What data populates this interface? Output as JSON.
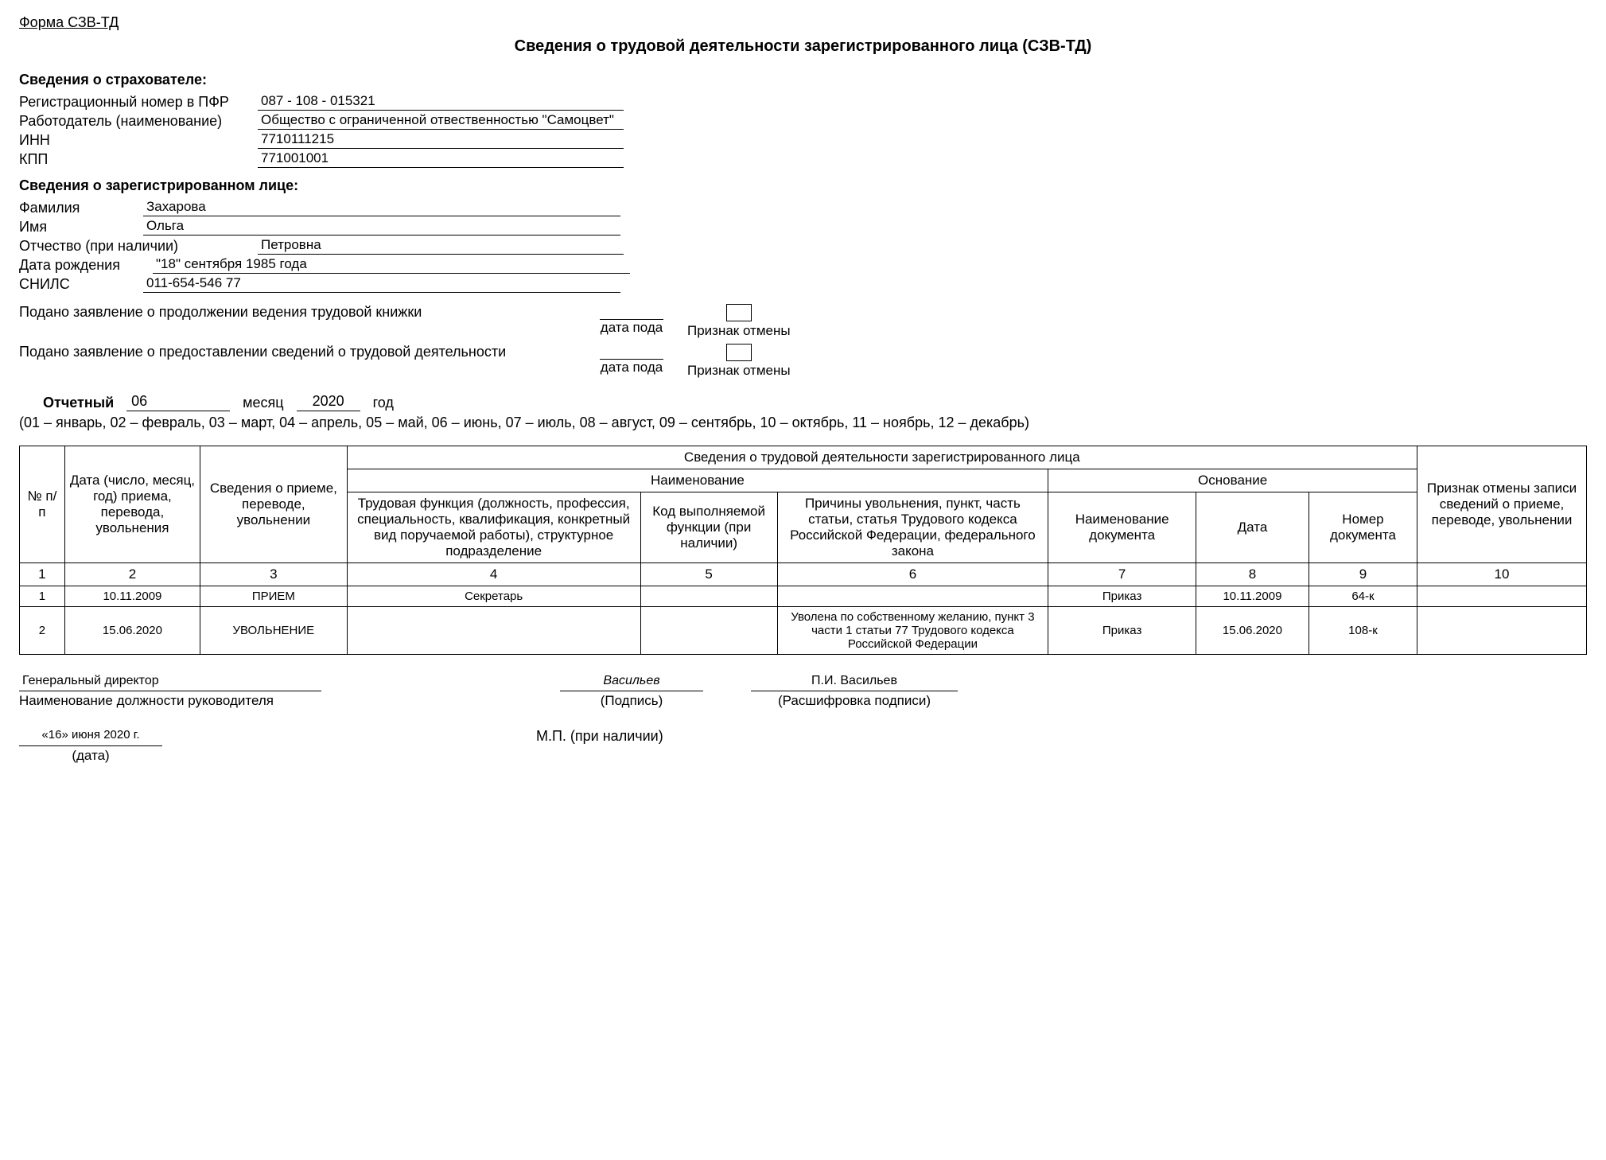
{
  "form_code": "Форма СЗВ-ТД",
  "title": "Сведения о трудовой деятельности зарегистрированного лица (СЗВ-ТД)",
  "insurer_section": "Сведения о страхователе:",
  "labels": {
    "pfr": "Регистрационный номер в ПФР",
    "employer": "Работодатель (наименование)",
    "inn": "ИНН",
    "kpp": "КПП",
    "person_section": "Сведения о зарегистрированном лице:",
    "surname": "Фамилия",
    "name": "Имя",
    "patronymic": "Отчество (при наличии)",
    "dob": "Дата рождения",
    "snils": "СНИЛС",
    "statement1": "Подано заявление о продолжении ведения трудовой книжки",
    "statement2": "Подано заявление о предоставлении сведений о трудовой деятельности",
    "date_poda": "дата пода",
    "cancel_mark": "Признак отмены",
    "report_lbl": "Отчетный",
    "month_word": "месяц",
    "year_word": "год",
    "months_note": "(01 – январь, 02 – февраль, 03 – март, 04 – апрель, 05 – май, 06 – июнь, 07 – июль, 08 – август, 09 – сентябрь, 10 – октябрь, 11 – ноябрь, 12 – декабрь)"
  },
  "insurer": {
    "pfr": "087 - 108 - 015321",
    "employer": "Общество с ограниченной отвественностью \"Самоцвет\"",
    "inn": "7710111215",
    "kpp": "771001001"
  },
  "person": {
    "surname": "Захарова",
    "name": "Ольга",
    "patronymic": "Петровна",
    "dob": "\"18\"  сентября 1985 года",
    "snils": "011-654-546 77"
  },
  "period": {
    "month": "06",
    "year": "2020"
  },
  "table": {
    "h_top": "Сведения о трудовой деятельности зарегистрированного лица",
    "h_naim": "Наименование",
    "h_osn": "Основание",
    "h_npp": "№ п/п",
    "h_date": "Дата (число, месяц, год) приема, перевода, увольнения",
    "h_event": "Сведения о приеме, переводе, увольнении",
    "h_func": "Трудовая функция (должность, профессия, специальность, квалификация, конкретный вид поручаемой работы), структурное подразделение",
    "h_code": "Код выполняемой функции (при наличии)",
    "h_reason": "Причины увольнения, пункт, часть статьи, статья Трудового кодекса Российской Федерации, федерального закона",
    "h_docname": "Наименование документа",
    "h_docdate": "Дата",
    "h_docnum": "Номер документа",
    "h_cancel": "Признак отмены записи сведений о приеме, переводе, увольнении",
    "nums": [
      "1",
      "2",
      "3",
      "4",
      "5",
      "6",
      "7",
      "8",
      "9",
      "10"
    ],
    "rows": [
      {
        "n": "1",
        "date": "10.11.2009",
        "event": "ПРИЕМ",
        "func": "Секретарь",
        "code": "",
        "reason": "",
        "docname": "Приказ",
        "docdate": "10.11.2009",
        "docnum": "64-к",
        "cancel": ""
      },
      {
        "n": "2",
        "date": "15.06.2020",
        "event": "УВОЛЬНЕНИЕ",
        "func": "",
        "code": "",
        "reason": "Уволена по собственному желанию, пункт 3 части 1 статьи 77 Трудового кодекса Российской Федерации",
        "docname": "Приказ",
        "docdate": "15.06.2020",
        "docnum": "108-к",
        "cancel": ""
      }
    ]
  },
  "sign": {
    "position": "Генеральный директор",
    "pos_caption": "Наименование должности руководителя",
    "signature": "Васильев",
    "signature_caption": "(Подпись)",
    "transcript": "П.И. Васильев",
    "transcript_caption": "(Расшифровка подписи)",
    "date": "«16»  июня 2020 г.",
    "date_caption": "(дата)",
    "seal": "М.П. (при наличии)"
  }
}
